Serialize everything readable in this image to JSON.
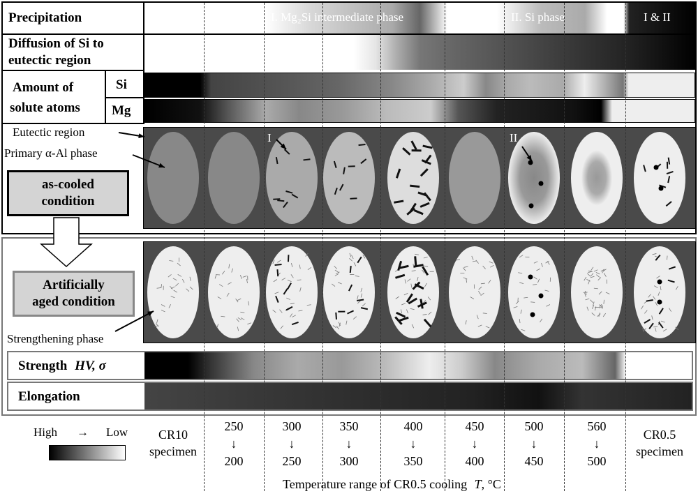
{
  "labels": {
    "precipitation": "Precipitation",
    "phase1": "I. Mg₂Si intermediate phase",
    "phase2": "II. Si phase",
    "phase12": "I & II",
    "diffusion_l1": "Diffusion of Si to",
    "diffusion_l2": "eutectic region",
    "amount_l1": "Amount of",
    "amount_l2": "solute atoms",
    "si": "Si",
    "mg": "Mg",
    "eutectic": "Eutectic region",
    "primary": "Primary α-Al phase",
    "marker_i": "I",
    "marker_ii": "II",
    "ascooled_l1": "as-cooled",
    "ascooled_l2": "condition",
    "aged_l1": "Artificially",
    "aged_l2": "aged condition",
    "strengthening": "Strengthening phase",
    "strength": "Strength",
    "strength_sym": "HV, σ",
    "elongation": "Elongation",
    "legend_high": "High",
    "legend_arrow": "→",
    "legend_low": "Low",
    "axis_title": "Temperature range of CR0.5 cooling",
    "axis_symbol": "T",
    "axis_unit": ", °C"
  },
  "columns": [
    {
      "top": "CR10",
      "mid": "",
      "bot": "specimen"
    },
    {
      "top": "250",
      "mid": "↓",
      "bot": "200"
    },
    {
      "top": "300",
      "mid": "↓",
      "bot": "250"
    },
    {
      "top": "350",
      "mid": "↓",
      "bot": "300"
    },
    {
      "top": "400",
      "mid": "↓",
      "bot": "350"
    },
    {
      "top": "450",
      "mid": "↓",
      "bot": "400"
    },
    {
      "top": "500",
      "mid": "↓",
      "bot": "450"
    },
    {
      "top": "560",
      "mid": "↓",
      "bot": "500"
    },
    {
      "top": "CR0.5",
      "mid": "",
      "bot": "specimen"
    }
  ],
  "colors": {
    "panel": "#4a4a4a",
    "btn": "#d4d4d4"
  }
}
